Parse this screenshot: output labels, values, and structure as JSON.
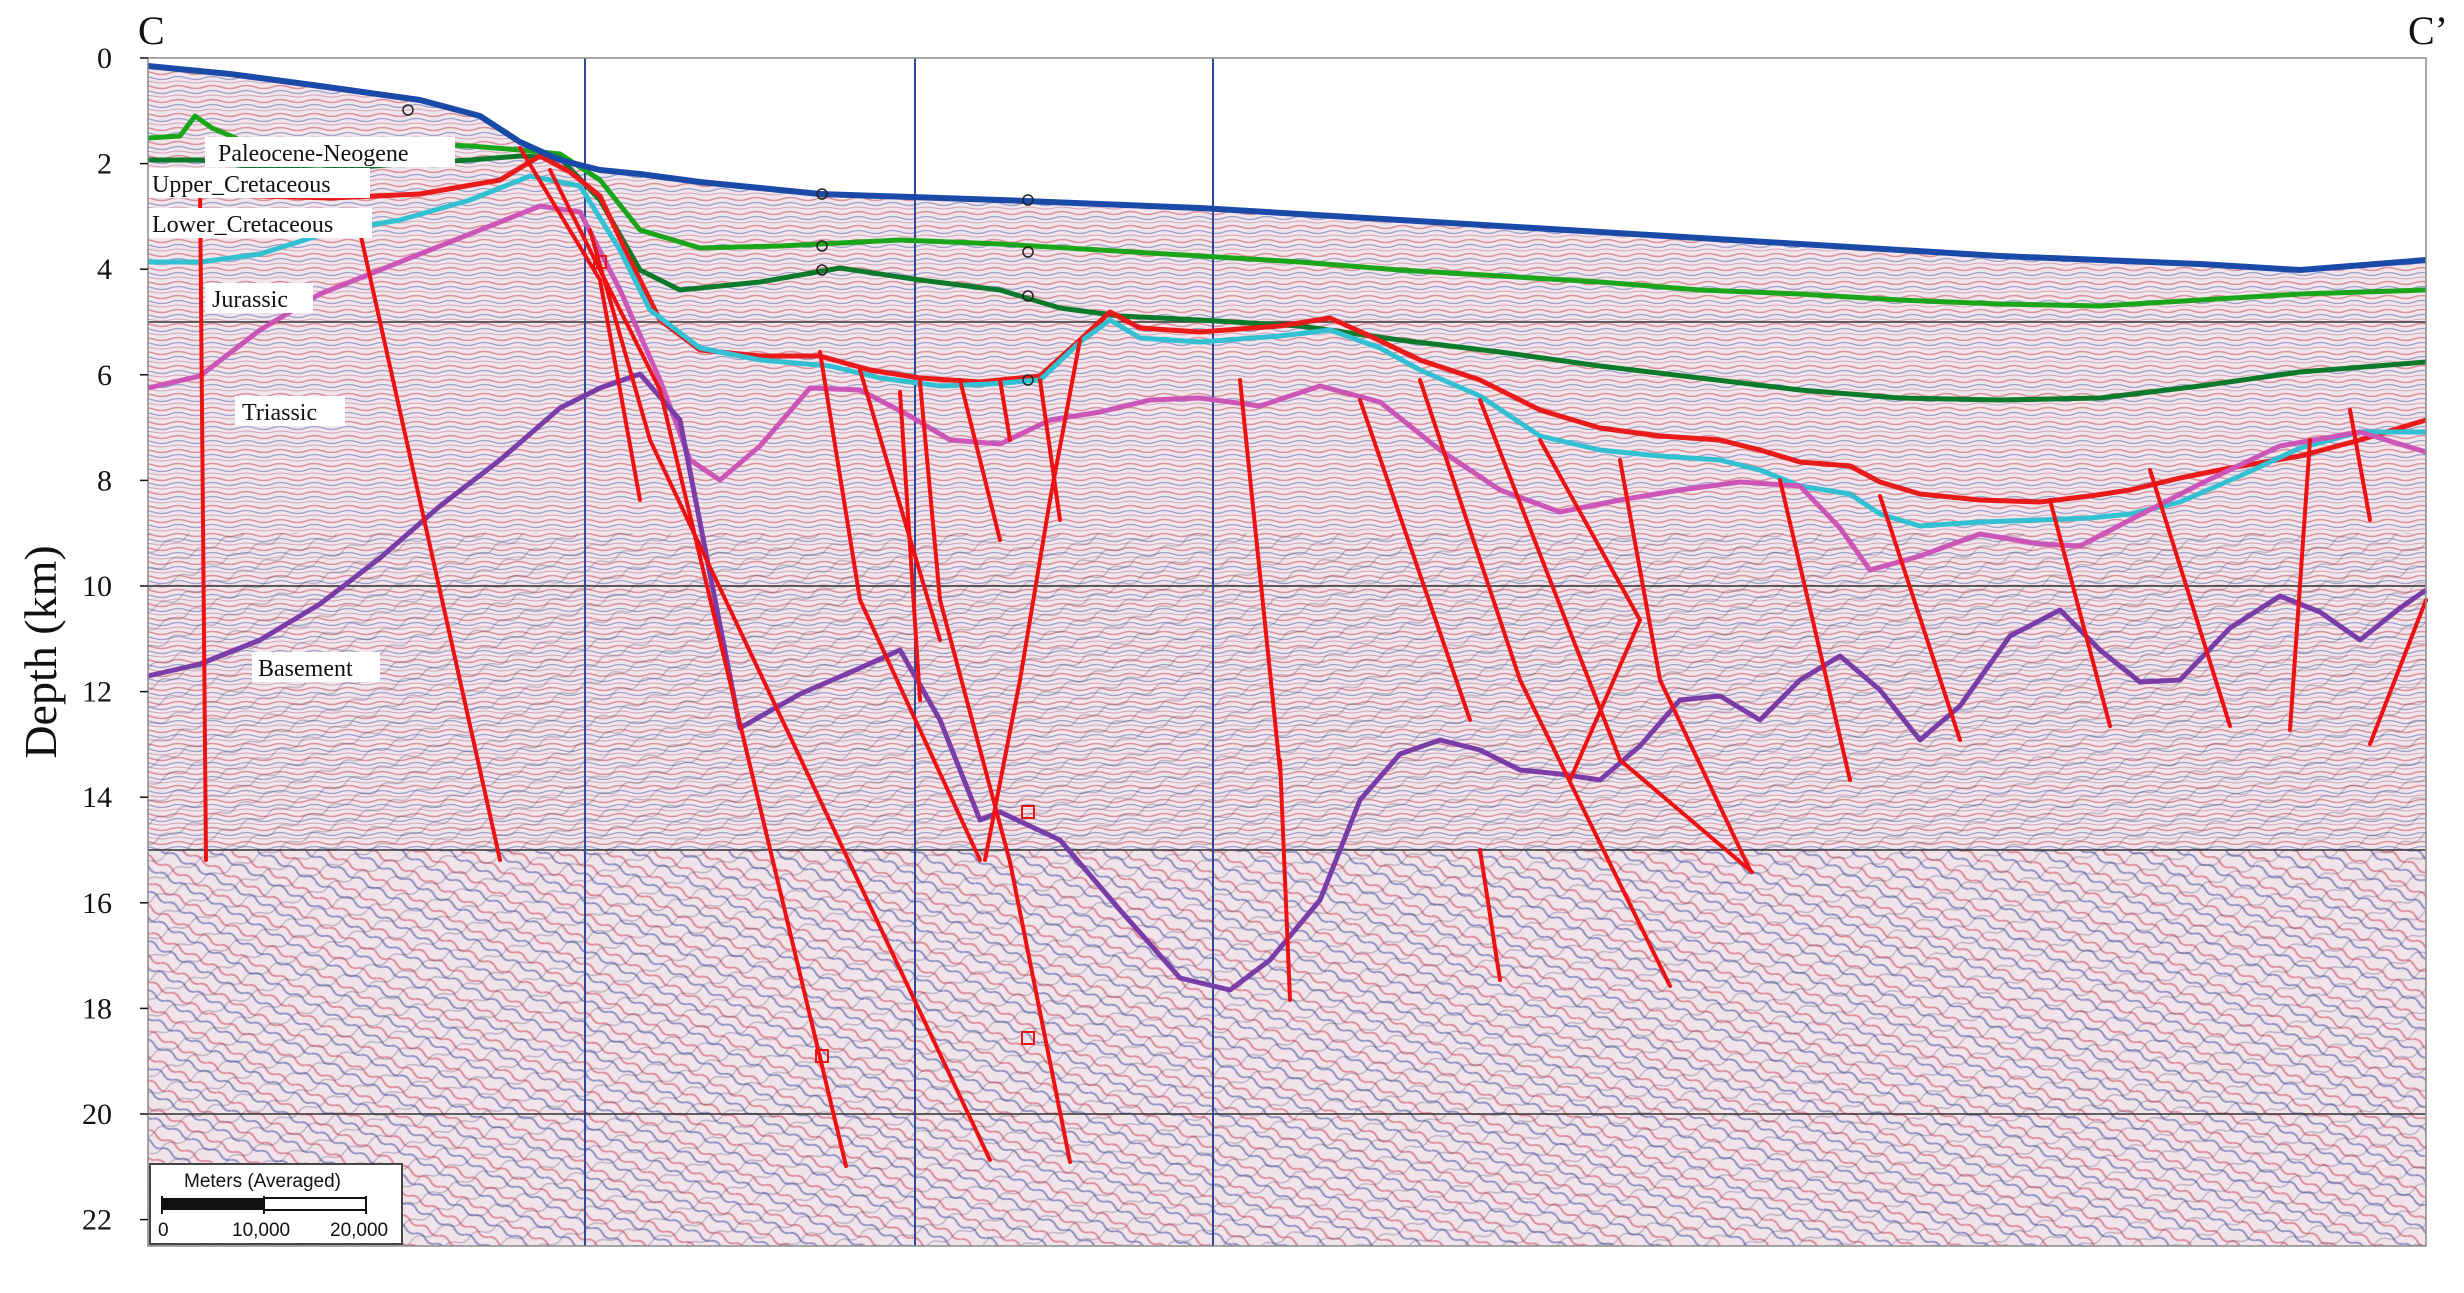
{
  "section": {
    "start_label": "C",
    "end_label": "C’",
    "axis": {
      "title": "Depth (km)",
      "ticks": [
        0,
        2,
        4,
        6,
        8,
        10,
        12,
        14,
        16,
        18,
        20,
        22
      ],
      "range_km": [
        0,
        22.5
      ],
      "major_gridlines_km": [
        5,
        10,
        15,
        20
      ]
    },
    "units": [
      {
        "name": "Paleocene-Neogene",
        "color": "#1aa51a"
      },
      {
        "name": "Upper_Cretaceous",
        "color": "#0c7a2a"
      },
      {
        "name": "Lower_Cretaceous",
        "color": "#e81a1a"
      },
      {
        "name": "Jurassic",
        "color": "#33c0d2"
      },
      {
        "name": "Triassic",
        "color": "#cc55b8"
      },
      {
        "name": "Basement",
        "color": "#7a3ca6"
      }
    ],
    "seafloor_color": "#1a4aa8",
    "fault_color": "#ee1111",
    "scale_bar": {
      "title": "Meters (Averaged)",
      "ticks": [
        "0",
        "10,000",
        "20,000"
      ]
    }
  }
}
